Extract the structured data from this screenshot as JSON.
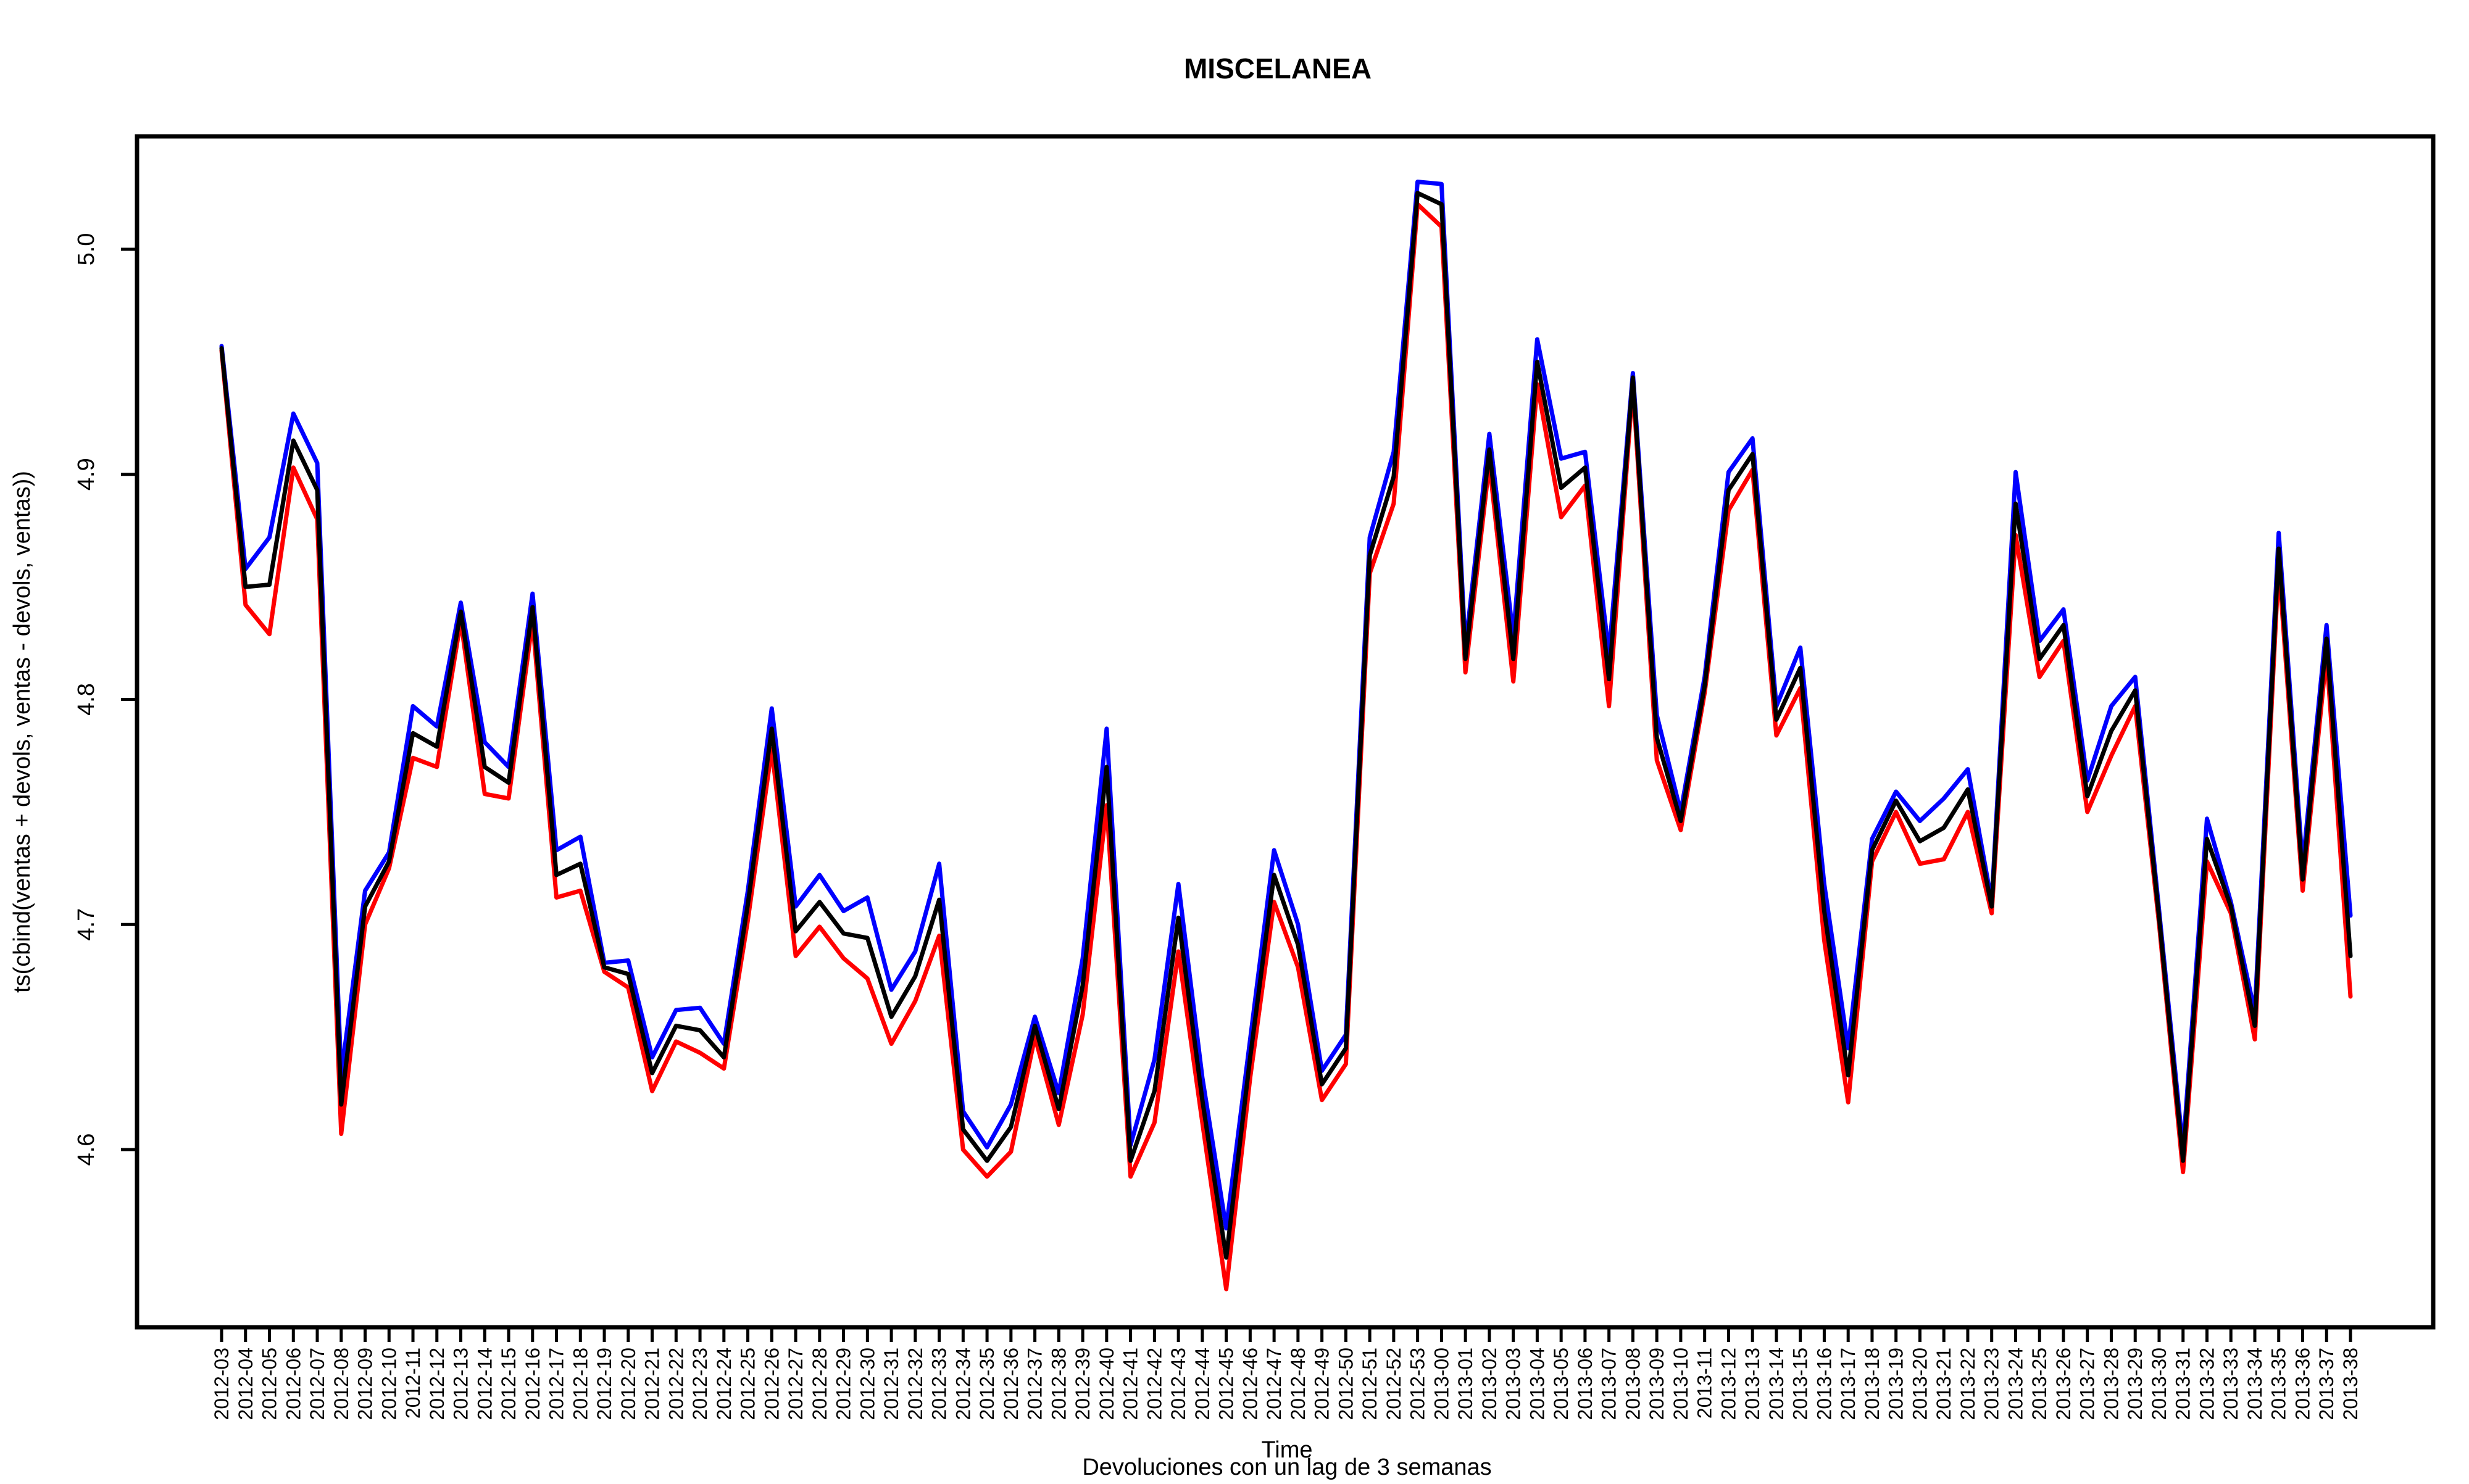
{
  "chart_data": {
    "type": "line",
    "title": "MISCELANEA",
    "xlabel": "Time",
    "subtitle": "Devoluciones con un lag de 3 semanas",
    "ylabel": "ts(cbind(ventas + devols, ventas - devols, ventas))",
    "ylim": [
      4.52,
      5.05
    ],
    "yticks": [
      "4.6",
      "4.7",
      "4.8",
      "4.9",
      "5.0"
    ],
    "grid": false,
    "categories": [
      "2012-03",
      "2012-04",
      "2012-05",
      "2012-06",
      "2012-07",
      "2012-08",
      "2012-09",
      "2012-10",
      "2012-11",
      "2012-12",
      "2012-13",
      "2012-14",
      "2012-15",
      "2012-16",
      "2012-17",
      "2012-18",
      "2012-19",
      "2012-20",
      "2012-21",
      "2012-22",
      "2012-23",
      "2012-24",
      "2012-25",
      "2012-26",
      "2012-27",
      "2012-28",
      "2012-29",
      "2012-30",
      "2012-31",
      "2012-32",
      "2012-33",
      "2012-34",
      "2012-35",
      "2012-36",
      "2012-37",
      "2012-38",
      "2012-39",
      "2012-40",
      "2012-41",
      "2012-42",
      "2012-43",
      "2012-44",
      "2012-45",
      "2012-46",
      "2012-47",
      "2012-48",
      "2012-49",
      "2012-50",
      "2012-51",
      "2012-52",
      "2012-53",
      "2013-00",
      "2013-01",
      "2013-02",
      "2013-03",
      "2013-04",
      "2013-05",
      "2013-06",
      "2013-07",
      "2013-08",
      "2013-09",
      "2013-10",
      "2013-11",
      "2013-12",
      "2013-13",
      "2013-14",
      "2013-15",
      "2013-16",
      "2013-17",
      "2013-18",
      "2013-19",
      "2013-20",
      "2013-21",
      "2013-22",
      "2013-23",
      "2013-24",
      "2013-25",
      "2013-26",
      "2013-27",
      "2013-28",
      "2013-29",
      "2013-30",
      "2013-31",
      "2013-32",
      "2013-33",
      "2013-34",
      "2013-35",
      "2013-36",
      "2013-37",
      "2013-38"
    ],
    "series": [
      {
        "color": "#0000ff",
        "values": [
          4.957,
          4.858,
          4.872,
          4.927,
          4.905,
          4.633,
          4.715,
          4.732,
          4.797,
          4.788,
          4.843,
          4.781,
          4.77,
          4.847,
          4.733,
          4.739,
          4.683,
          4.684,
          4.641,
          4.662,
          4.663,
          4.647,
          4.715,
          4.796,
          4.708,
          4.722,
          4.706,
          4.712,
          4.671,
          4.688,
          4.727,
          4.617,
          4.601,
          4.62,
          4.659,
          4.625,
          4.685,
          4.787,
          4.602,
          4.64,
          4.718,
          4.632,
          4.565,
          4.649,
          4.733,
          4.7,
          4.635,
          4.651,
          4.872,
          4.91,
          5.03,
          5.029,
          4.823,
          4.918,
          4.828,
          4.96,
          4.907,
          4.91,
          4.82,
          4.945,
          4.793,
          4.75,
          4.81,
          4.901,
          4.916,
          4.797,
          4.823,
          4.718,
          4.645,
          4.738,
          4.759,
          4.746,
          4.756,
          4.769,
          4.71,
          4.901,
          4.826,
          4.84,
          4.764,
          4.797,
          4.81,
          4.706,
          4.6,
          4.747,
          4.71,
          4.661,
          4.874,
          4.726,
          4.833,
          4.704
        ]
      },
      {
        "color": "#ff0000",
        "values": [
          4.955,
          4.842,
          4.829,
          4.903,
          4.88,
          4.607,
          4.7,
          4.725,
          4.774,
          4.77,
          4.835,
          4.758,
          4.756,
          4.835,
          4.712,
          4.715,
          4.679,
          4.672,
          4.626,
          4.648,
          4.643,
          4.636,
          4.702,
          4.778,
          4.686,
          4.699,
          4.685,
          4.676,
          4.647,
          4.666,
          4.695,
          4.6,
          4.588,
          4.599,
          4.65,
          4.611,
          4.66,
          4.753,
          4.588,
          4.612,
          4.688,
          4.612,
          4.538,
          4.632,
          4.71,
          4.681,
          4.622,
          4.638,
          4.856,
          4.887,
          5.02,
          5.01,
          4.812,
          4.905,
          4.808,
          4.94,
          4.881,
          4.895,
          4.797,
          4.94,
          4.773,
          4.742,
          4.803,
          4.884,
          4.902,
          4.784,
          4.805,
          4.693,
          4.621,
          4.728,
          4.75,
          4.727,
          4.729,
          4.75,
          4.705,
          4.873,
          4.81,
          4.826,
          4.75,
          4.775,
          4.797,
          4.7,
          4.59,
          4.728,
          4.705,
          4.649,
          4.86,
          4.715,
          4.82,
          4.668
        ]
      },
      {
        "color": "#000000",
        "values": [
          4.956,
          4.85,
          4.851,
          4.915,
          4.893,
          4.62,
          4.708,
          4.728,
          4.785,
          4.779,
          4.839,
          4.77,
          4.763,
          4.841,
          4.722,
          4.727,
          4.681,
          4.678,
          4.634,
          4.655,
          4.653,
          4.641,
          4.709,
          4.787,
          4.697,
          4.71,
          4.696,
          4.694,
          4.659,
          4.677,
          4.711,
          4.609,
          4.595,
          4.61,
          4.655,
          4.618,
          4.673,
          4.77,
          4.595,
          4.626,
          4.703,
          4.622,
          4.552,
          4.641,
          4.722,
          4.691,
          4.629,
          4.645,
          4.864,
          4.899,
          5.025,
          5.02,
          4.818,
          4.911,
          4.818,
          4.95,
          4.894,
          4.903,
          4.809,
          4.943,
          4.783,
          4.746,
          4.806,
          4.893,
          4.909,
          4.791,
          4.814,
          4.706,
          4.633,
          4.733,
          4.755,
          4.737,
          4.743,
          4.76,
          4.708,
          4.887,
          4.818,
          4.833,
          4.757,
          4.786,
          4.804,
          4.703,
          4.595,
          4.738,
          4.708,
          4.655,
          4.867,
          4.72,
          4.827,
          4.686
        ]
      }
    ]
  }
}
